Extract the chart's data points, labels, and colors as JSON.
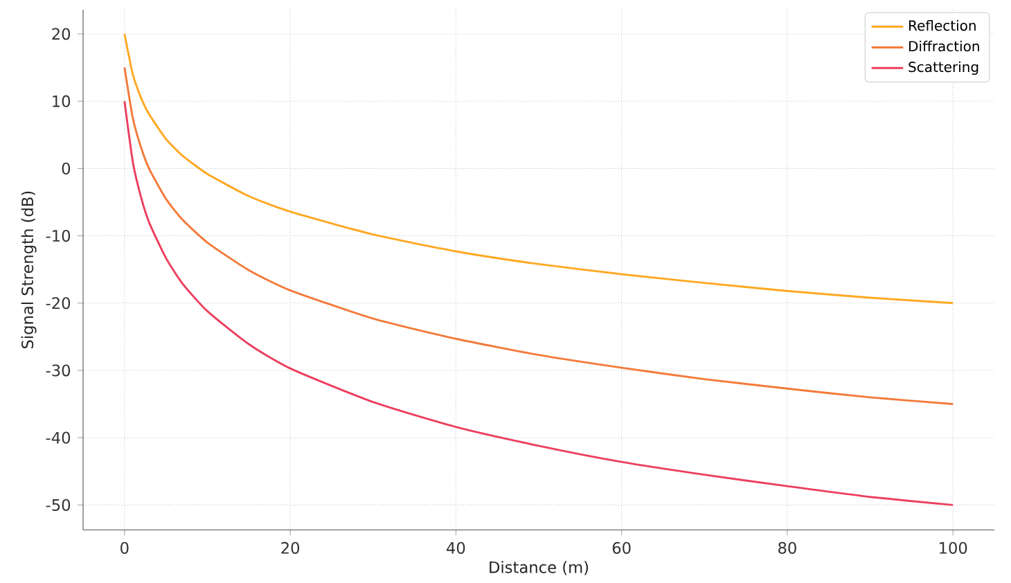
{
  "chart_data": {
    "type": "line",
    "xlabel": "Distance (m)",
    "ylabel": "Signal Strength (dB)",
    "x": [
      0,
      1,
      2,
      3,
      5,
      7,
      10,
      15,
      20,
      30,
      40,
      50,
      60,
      70,
      80,
      90,
      100
    ],
    "series": [
      {
        "name": "Reflection",
        "color": "#ffa822",
        "values": [
          20,
          14,
          10.5,
          8,
          4.4,
          1.9,
          -0.8,
          -4.1,
          -6.4,
          -9.8,
          -12.3,
          -14.2,
          -15.7,
          -17,
          -18.2,
          -19.2,
          -20
        ]
      },
      {
        "name": "Diffraction",
        "color": "#f47a3a",
        "values": [
          15,
          7.5,
          3.1,
          -0.1,
          -4.5,
          -7.6,
          -11,
          -15.1,
          -18.1,
          -22.3,
          -25.3,
          -27.7,
          -29.6,
          -31.3,
          -32.7,
          -34,
          -35
        ]
      },
      {
        "name": "Scattering",
        "color": "#ec3f5e",
        "values": [
          10,
          1,
          -4.3,
          -8.1,
          -13.3,
          -17.1,
          -21.2,
          -26.1,
          -29.7,
          -34.7,
          -38.4,
          -41.2,
          -43.6,
          -45.5,
          -47.2,
          -48.8,
          -50
        ]
      }
    ],
    "xlim": [
      -5,
      105
    ],
    "ylim": [
      -53.7,
      23.6
    ],
    "xticks": [
      0,
      20,
      40,
      60,
      80,
      100
    ],
    "yticks": [
      -50,
      -40,
      -30,
      -20,
      -10,
      0,
      10,
      20
    ],
    "grid": true,
    "legend": "top right",
    "marker": "none",
    "line_style": "solid"
  }
}
